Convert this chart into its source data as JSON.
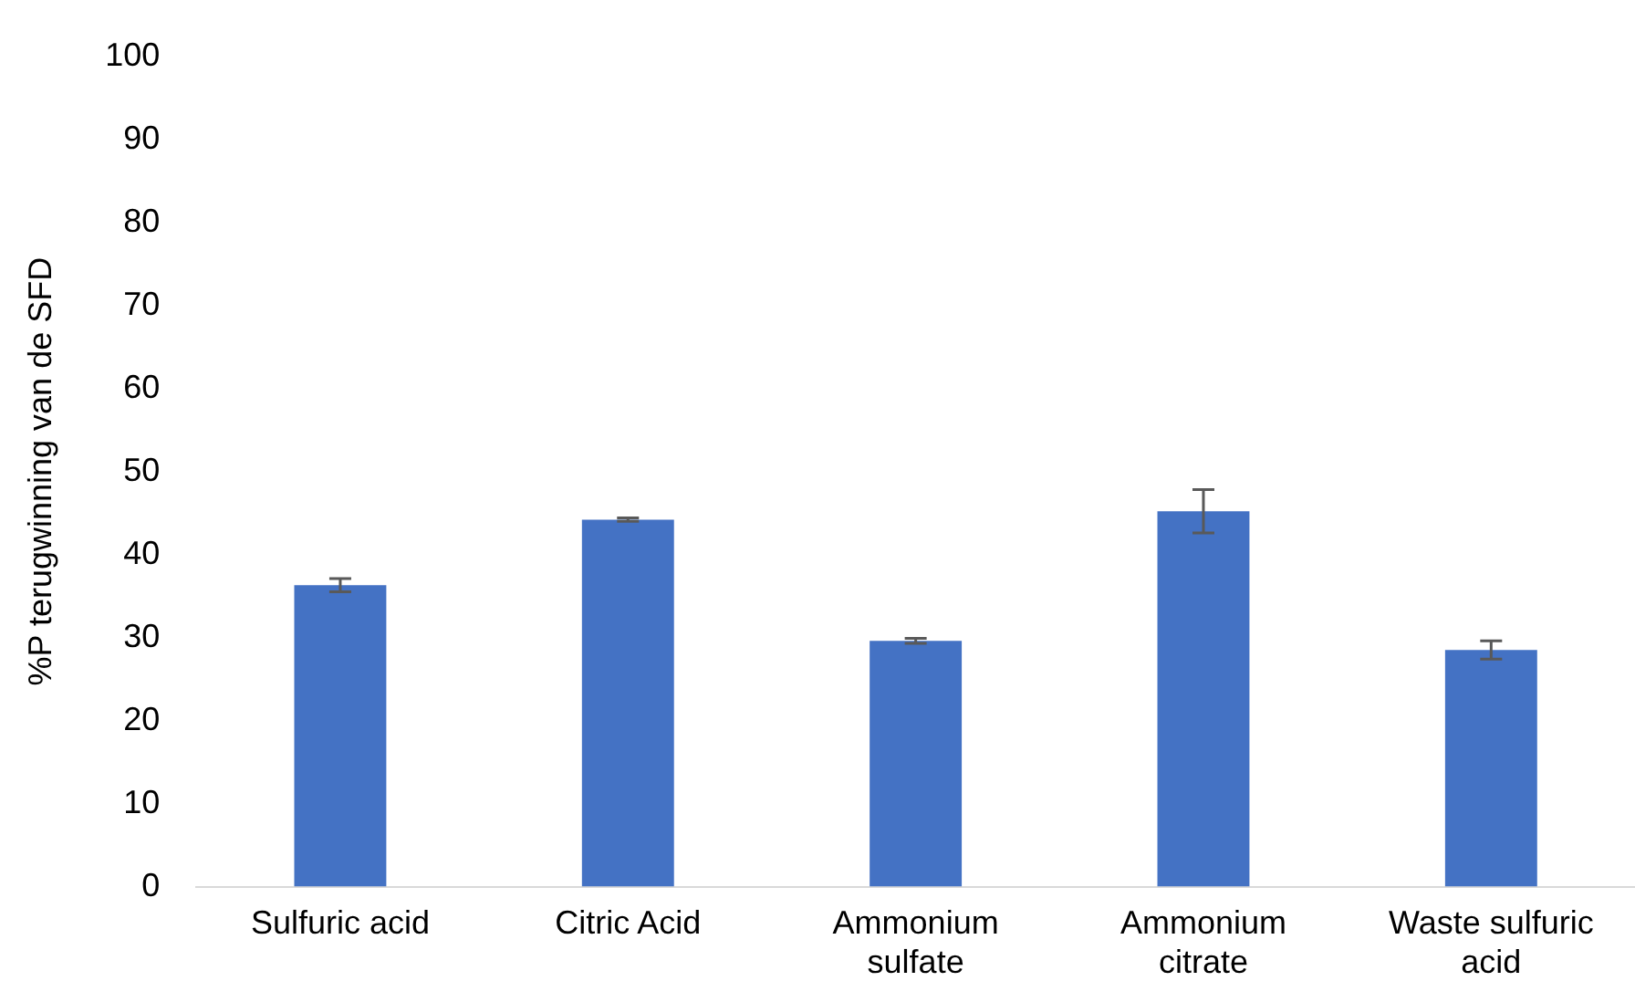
{
  "chart_data": {
    "type": "bar",
    "ylabel": "%P terugwinning van de SFD",
    "categories": [
      "Sulfuric acid",
      "Citric Acid",
      "Ammonium sulfate",
      "Ammonium citrate",
      "Waste sulfuric acid"
    ],
    "values": [
      36.3,
      44.2,
      29.6,
      45.2,
      28.5
    ],
    "errors": [
      0.8,
      0.2,
      0.3,
      2.6,
      1.1
    ],
    "color": "#4472c4",
    "ylim": [
      0,
      100
    ],
    "yticks": [
      0,
      10,
      20,
      30,
      40,
      50,
      60,
      70,
      80,
      90,
      100
    ],
    "grid": false,
    "legend": false
  }
}
